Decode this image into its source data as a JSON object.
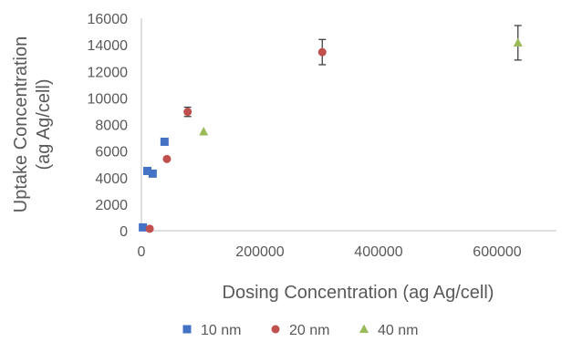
{
  "chart_data": {
    "type": "scatter",
    "xlabel": "Dosing Concentration (ag Ag/cell)",
    "ylabel": "Uptake Concentration (ag Ag/cell)",
    "ylabel_lines": [
      "Uptake Concentration",
      "(ag Ag/cell)"
    ],
    "xlim": [
      0,
      700000
    ],
    "ylim": [
      0,
      16000
    ],
    "xticks": [
      0,
      200000,
      400000,
      600000
    ],
    "yticks": [
      0,
      2000,
      4000,
      6000,
      8000,
      10000,
      12000,
      14000,
      16000
    ],
    "xtick_labels": [
      "0",
      "200000",
      "400000",
      "600000"
    ],
    "ytick_labels": [
      "0",
      "2000",
      "4000",
      "6000",
      "8000",
      "10000",
      "12000",
      "14000",
      "16000"
    ],
    "grid": false,
    "legend": "bottom",
    "series": [
      {
        "name": "10 nm",
        "marker": "square",
        "color": "#4472C4",
        "points": [
          {
            "x": 2500,
            "y": 250,
            "err": 0
          },
          {
            "x": 10000,
            "y": 4500,
            "err": 0
          },
          {
            "x": 19000,
            "y": 4300,
            "err": 0
          },
          {
            "x": 39000,
            "y": 6700,
            "err": 0
          }
        ]
      },
      {
        "name": "20 nm",
        "marker": "circle",
        "color": "#C0504D",
        "points": [
          {
            "x": 14000,
            "y": 150,
            "err": 0
          },
          {
            "x": 43000,
            "y": 5400,
            "err": 0
          },
          {
            "x": 78000,
            "y": 8950,
            "err": 350
          },
          {
            "x": 305000,
            "y": 13450,
            "err": 950
          }
        ]
      },
      {
        "name": "40 nm",
        "marker": "triangle",
        "color": "#9BBB59",
        "points": [
          {
            "x": 105000,
            "y": 7450,
            "err": 0
          },
          {
            "x": 635000,
            "y": 14150,
            "err": 1300
          }
        ]
      }
    ]
  }
}
